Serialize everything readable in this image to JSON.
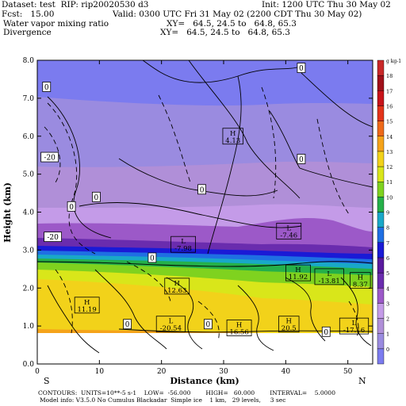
{
  "header": {
    "dataset": "Dataset: test  RIP: rip20020530 d3",
    "init": "Init: 1200 UTC Thu 30 May 02",
    "fcst": "Fcst:   15.00",
    "valid": "Valid: 0300 UTC Fri 31 May 02 (2200 CDT Thu 30 May 02)",
    "field1_name": "Water vapor mixing ratio",
    "field1_xy": "XY=   64.5, 24.5 to   64.8, 65.3",
    "field2_name": "Divergence",
    "field2_xy": "XY=   64.5, 24.5 to   64.8, 65.3"
  },
  "footer": {
    "line1": "CONTOURS:  UNITS=10**-5 s-1    LOW=  -56.000        HIGH=   60.000        INTERVAL=    5.0000",
    "line2": "Model info: V3.5.0 No Cumulus Blackadar  Simple ice    1 km,   29 levels,     3 sec"
  },
  "orientation": {
    "left": "S",
    "right": "N"
  },
  "colorbar": {
    "unit_label": "g kg-1",
    "labels": [
      "0",
      "1",
      "2",
      "3",
      "4",
      "5",
      "6",
      "7",
      "8",
      "9",
      "10",
      "11",
      "12",
      "13",
      "14",
      "15",
      "16",
      "17",
      "18"
    ],
    "colors": [
      "#7b7bef",
      "#9a8be0",
      "#b08fd8",
      "#c49be8",
      "#9c59c8",
      "#6a2cae",
      "#5a1a9e",
      "#1a1ad6",
      "#1f6fe3",
      "#19a8c8",
      "#25b04a",
      "#7fd21f",
      "#d9e61a",
      "#f2d21a",
      "#f5a31a",
      "#ee6a1a",
      "#e3341a",
      "#c8141a",
      "#a0101a",
      "#c82828"
    ]
  },
  "chart_data": {
    "type": "heatmap",
    "title": "Water vapor mixing ratio",
    "overlay": "Divergence",
    "xlabel": "Distance (km)",
    "ylabel": "Height (km)",
    "xlim": [
      0,
      54
    ],
    "ylim": [
      0,
      8
    ],
    "xticks": [
      "0",
      "10",
      "20",
      "30",
      "40",
      "50"
    ],
    "xtick_values": [
      0,
      10,
      20,
      30,
      40,
      50
    ],
    "yticks": [
      "0.0",
      "1.0",
      "2.0",
      "3.0",
      "4.0",
      "5.0",
      "6.0",
      "7.0",
      "8.0"
    ],
    "ytick_values": [
      0,
      1,
      2,
      3,
      4,
      5,
      6,
      7,
      8
    ],
    "labels": [
      {
        "kind": "value",
        "text": "0",
        "x": 42.5,
        "y": 7.8
      },
      {
        "kind": "value",
        "text": "0",
        "x": 1.5,
        "y": 7.3
      },
      {
        "kind": "high",
        "text": "H",
        "value": "4.13",
        "x": 31.5,
        "y": 6.0
      },
      {
        "kind": "value",
        "text": "-20",
        "x": 2.0,
        "y": 5.45
      },
      {
        "kind": "value",
        "text": "0",
        "x": 42.5,
        "y": 5.4
      },
      {
        "kind": "value",
        "text": "0",
        "x": 26.5,
        "y": 4.6
      },
      {
        "kind": "value",
        "text": "0",
        "x": 9.5,
        "y": 4.4
      },
      {
        "kind": "value",
        "text": "0",
        "x": 5.5,
        "y": 4.15
      },
      {
        "kind": "low",
        "text": "L",
        "value": "-7.46",
        "x": 40.5,
        "y": 3.5
      },
      {
        "kind": "value",
        "text": "-20",
        "x": 2.5,
        "y": 3.35
      },
      {
        "kind": "low",
        "text": "L",
        "value": "-7.98",
        "x": 23.5,
        "y": 3.15
      },
      {
        "kind": "value",
        "text": "0",
        "x": 18.5,
        "y": 2.8
      },
      {
        "kind": "high",
        "text": "H",
        "value": "11.92",
        "x": 42.0,
        "y": 2.4
      },
      {
        "kind": "low",
        "text": "L",
        "value": "-13.81",
        "x": 47.0,
        "y": 2.3
      },
      {
        "kind": "high",
        "text": "H",
        "value": "8.37",
        "x": 52.0,
        "y": 2.2
      },
      {
        "kind": "high",
        "text": "H",
        "value": "12.63",
        "x": 22.5,
        "y": 2.05
      },
      {
        "kind": "high",
        "text": "H",
        "value": "11.19",
        "x": 8.0,
        "y": 1.55
      },
      {
        "kind": "value",
        "text": "0",
        "x": 14.5,
        "y": 1.05
      },
      {
        "kind": "low",
        "text": "L",
        "value": "-20.54",
        "x": 21.5,
        "y": 1.05
      },
      {
        "kind": "value",
        "text": "0",
        "x": 27.5,
        "y": 1.05
      },
      {
        "kind": "high",
        "text": "H",
        "value": "16.56",
        "x": 32.5,
        "y": 0.95
      },
      {
        "kind": "high",
        "text": "H",
        "value": "20.5",
        "x": 40.5,
        "y": 1.05
      },
      {
        "kind": "value",
        "text": "0",
        "x": 46.5,
        "y": 0.85
      },
      {
        "kind": "low",
        "text": "L",
        "value": "-17.16",
        "x": 51.0,
        "y": 1.0
      }
    ]
  }
}
